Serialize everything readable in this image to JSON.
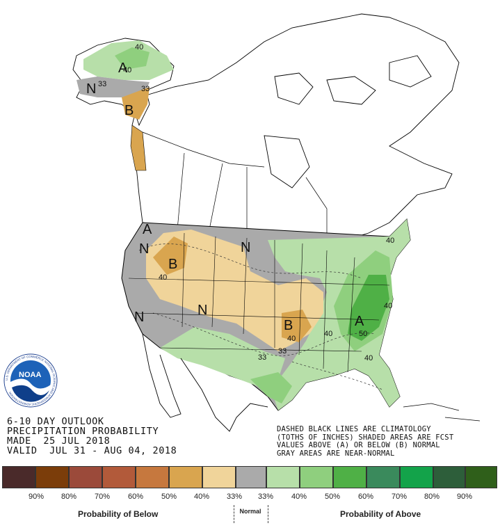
{
  "colors": {
    "below_90": "#4a2a2a",
    "below_80": "#7b3d0a",
    "below_70": "#9b4a3a",
    "below_60": "#b25a3a",
    "below_50": "#c6783e",
    "below_40": "#d9a54f",
    "below_33": "#f0d49a",
    "normal": "#aaaaaa",
    "above_33": "#b7dfa9",
    "above_40": "#8fcf7e",
    "above_50": "#4fb046",
    "above_60": "#3a8a5c",
    "above_70": "#13a34a",
    "above_80": "#2d5e3a",
    "above_90": "#2f5f1a",
    "above_light": "#b7dfa9",
    "above_mid": "#8fcf7e",
    "above_dark": "#4fb046",
    "below_light": "#f0d49a",
    "below_mid": "#d9a54f"
  },
  "map_labels": {
    "alaska_a": "A",
    "alaska_40_top": "40",
    "alaska_40": "40",
    "alaska_33_w": "33",
    "alaska_33_e": "33",
    "alaska_n": "N",
    "alaska_b": "B",
    "west_a": "A",
    "west_n_top": "N",
    "west_n": "N",
    "west_b": "B",
    "west_40": "40",
    "north_n": "N",
    "rockies_n": "N",
    "plains_b": "B",
    "plains_40": "40",
    "plains_33": "33",
    "plains_33b": "33",
    "east_a": "A",
    "east_40_ne": "40",
    "east_40_mid": "40",
    "east_40_se": "40",
    "east_40_w": "40",
    "east_50": "50"
  },
  "noaa_logo": {
    "text": "NOAA",
    "ring_text": "U.S. DEPARTMENT OF COMMERCE  NATIONAL OCEANIC AND ATMOSPHERIC ADMINISTRATION"
  },
  "title_lines": [
    "6-10 DAY OUTLOOK",
    "PRECIPITATION PROBABILITY",
    "MADE  25 JUL 2018",
    "VALID  JUL 31 - AUG 04, 2018"
  ],
  "note_lines": [
    "DASHED BLACK LINES ARE CLIMATOLOGY",
    "(TOTHS OF INCHES) SHADED AREAS ARE FCST",
    "VALUES ABOVE (A) OR BELOW (B) NORMAL",
    "GRAY AREAS ARE NEAR-NORMAL"
  ],
  "legend": {
    "percent_labels": [
      "90%",
      "80%",
      "70%",
      "60%",
      "50%",
      "40%",
      "33%",
      "33%",
      "40%",
      "50%",
      "60%",
      "70%",
      "80%",
      "90%"
    ],
    "below_caption": "Probability of Below",
    "normal_caption": "Normal",
    "above_caption": "Probability of Above"
  }
}
